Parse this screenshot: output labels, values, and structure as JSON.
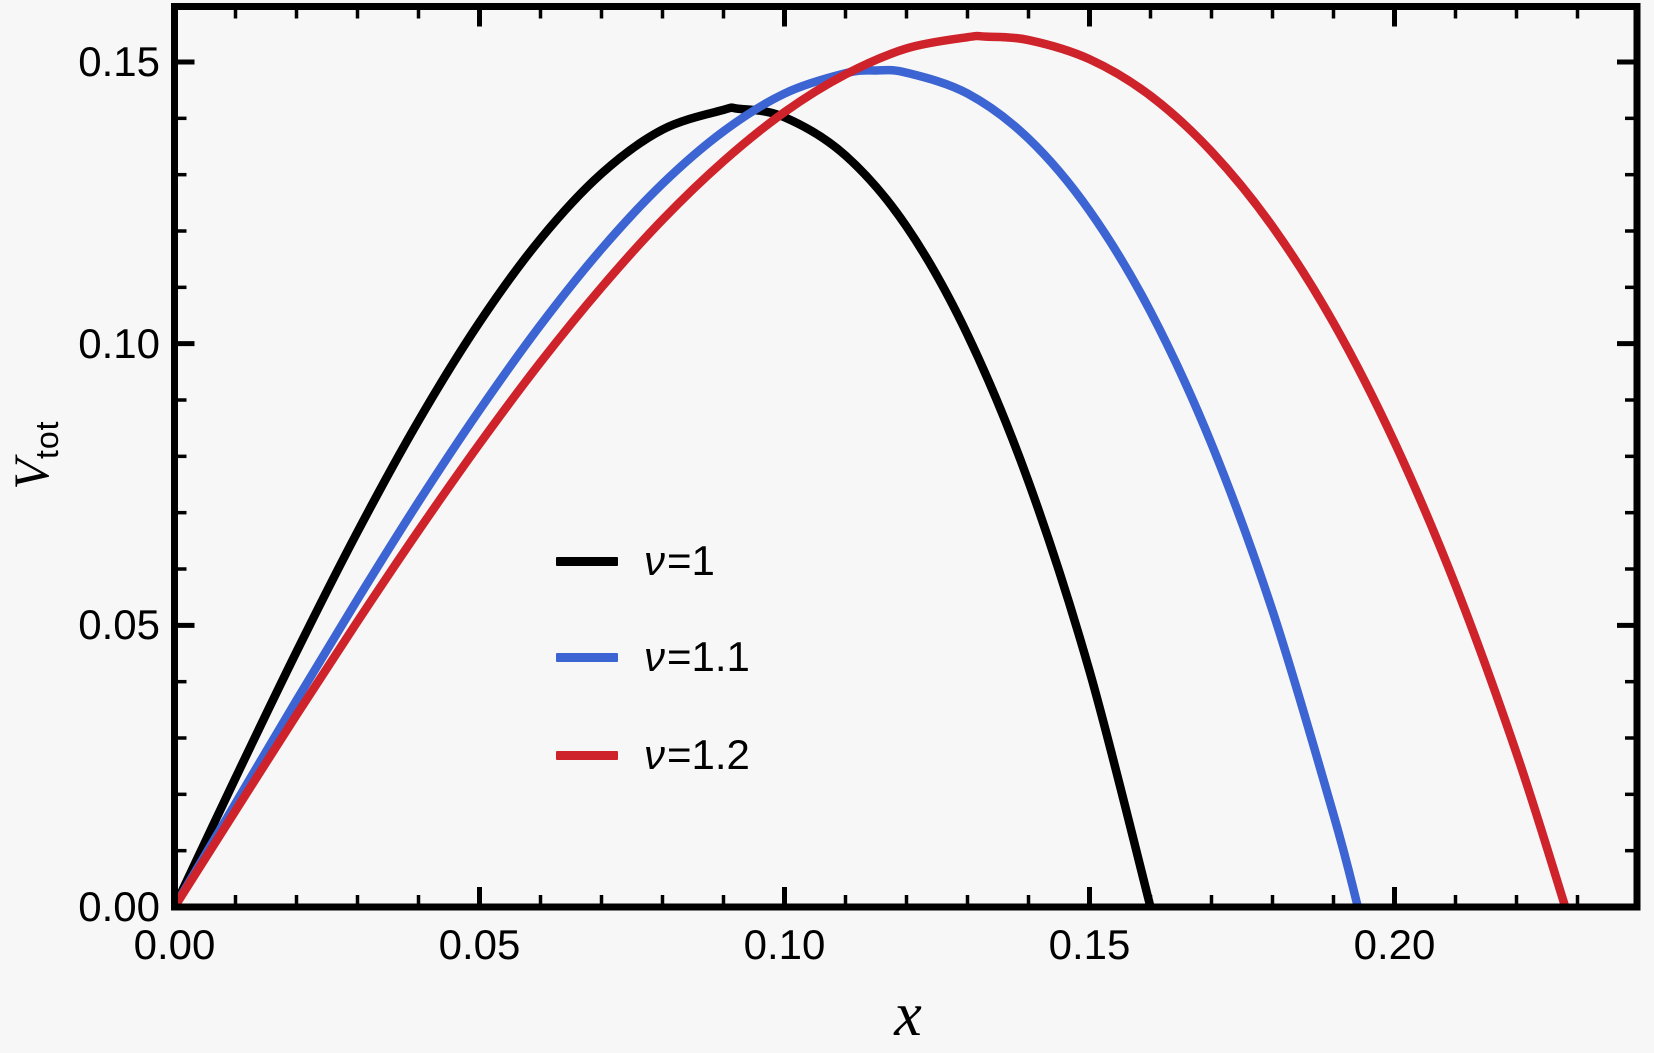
{
  "figure": {
    "background": "#f7f7f7",
    "frame_color": "#000000"
  },
  "axes": {
    "x": {
      "label": "x",
      "range": [
        0,
        0.2398
      ],
      "major_ticks": [
        {
          "v": 0.0,
          "label": "0.00"
        },
        {
          "v": 0.05,
          "label": "0.05"
        },
        {
          "v": 0.1,
          "label": "0.10"
        },
        {
          "v": 0.15,
          "label": "0.15"
        },
        {
          "v": 0.2,
          "label": "0.20"
        }
      ],
      "minor_step": 0.01
    },
    "y": {
      "label_main": "V",
      "label_sub": "tot",
      "range": [
        0,
        0.1596
      ],
      "major_ticks": [
        {
          "v": 0.0,
          "label": "0.00"
        },
        {
          "v": 0.05,
          "label": "0.05"
        },
        {
          "v": 0.1,
          "label": "0.10"
        },
        {
          "v": 0.15,
          "label": "0.15"
        }
      ],
      "minor_step": 0.01
    }
  },
  "legend": {
    "items": [
      {
        "symbol": "ν",
        "rest": "=1",
        "color": "#000000"
      },
      {
        "symbol": "ν",
        "rest": "=1.1",
        "color": "#3c64d2"
      },
      {
        "symbol": "ν",
        "rest": "=1.2",
        "color": "#cf232b"
      }
    ]
  },
  "chart_data": {
    "type": "line",
    "title": "",
    "xlabel": "x",
    "ylabel": "V_tot",
    "xlim": [
      0,
      0.24
    ],
    "ylim": [
      0,
      0.16
    ],
    "grid": false,
    "legend_position": "inside-center-left",
    "series": [
      {
        "name": "ν=1",
        "color": "#000000",
        "zero_crossing": 0.16,
        "peak": {
          "x": 0.092,
          "y": 0.142
        },
        "points": [
          [
            0,
            0
          ],
          [
            0.01,
            0.0229
          ],
          [
            0.02,
            0.0453
          ],
          [
            0.03,
            0.0666
          ],
          [
            0.04,
            0.0863
          ],
          [
            0.05,
            0.1038
          ],
          [
            0.06,
            0.1186
          ],
          [
            0.07,
            0.1302
          ],
          [
            0.08,
            0.138
          ],
          [
            0.09,
            0.1415
          ],
          [
            0.0924,
            0.1417
          ],
          [
            0.1,
            0.1402
          ],
          [
            0.11,
            0.1334
          ],
          [
            0.12,
            0.1208
          ],
          [
            0.13,
            0.1016
          ],
          [
            0.14,
            0.0755
          ],
          [
            0.15,
            0.0419
          ],
          [
            0.16,
            0
          ]
        ]
      },
      {
        "name": "ν=1.1",
        "color": "#3c64d2",
        "zero_crossing": 0.194,
        "peak": {
          "x": 0.115,
          "y": 0.1485
        },
        "points": [
          [
            0,
            0
          ],
          [
            0.01,
            0.0184
          ],
          [
            0.02,
            0.0367
          ],
          [
            0.03,
            0.0546
          ],
          [
            0.04,
            0.0719
          ],
          [
            0.05,
            0.0882
          ],
          [
            0.06,
            0.1033
          ],
          [
            0.07,
            0.1168
          ],
          [
            0.08,
            0.1284
          ],
          [
            0.09,
            0.1377
          ],
          [
            0.1,
            0.1444
          ],
          [
            0.11,
            0.148
          ],
          [
            0.115,
            0.1485
          ],
          [
            0.12,
            0.1481
          ],
          [
            0.13,
            0.1444
          ],
          [
            0.14,
            0.1364
          ],
          [
            0.15,
            0.1236
          ],
          [
            0.16,
            0.1057
          ],
          [
            0.17,
            0.0822
          ],
          [
            0.18,
            0.0526
          ],
          [
            0.19,
            0.0164
          ],
          [
            0.194,
            0
          ]
        ]
      },
      {
        "name": "ν=1.2",
        "color": "#cf232b",
        "zero_crossing": 0.228,
        "peak": {
          "x": 0.133,
          "y": 0.1545
        },
        "points": [
          [
            0,
            0
          ],
          [
            0.01,
            0.0171
          ],
          [
            0.02,
            0.0341
          ],
          [
            0.03,
            0.0507
          ],
          [
            0.04,
            0.0668
          ],
          [
            0.05,
            0.0822
          ],
          [
            0.06,
            0.0967
          ],
          [
            0.07,
            0.11
          ],
          [
            0.08,
            0.122
          ],
          [
            0.09,
            0.1324
          ],
          [
            0.1,
            0.1411
          ],
          [
            0.11,
            0.1478
          ],
          [
            0.12,
            0.1524
          ],
          [
            0.13,
            0.1544
          ],
          [
            0.133,
            0.1545
          ],
          [
            0.14,
            0.1539
          ],
          [
            0.15,
            0.1505
          ],
          [
            0.16,
            0.144
          ],
          [
            0.17,
            0.1341
          ],
          [
            0.18,
            0.1208
          ],
          [
            0.19,
            0.1037
          ],
          [
            0.2,
            0.0825
          ],
          [
            0.21,
            0.0571
          ],
          [
            0.22,
            0.0273
          ],
          [
            0.228,
            0
          ]
        ]
      }
    ]
  }
}
